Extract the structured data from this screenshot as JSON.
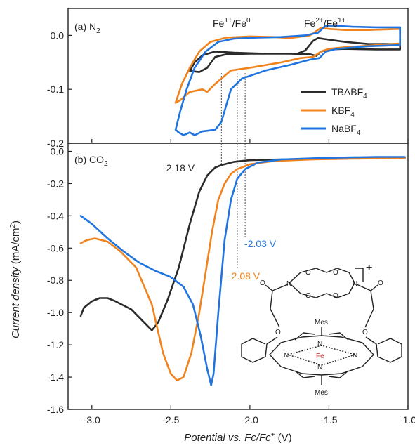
{
  "chart_data": [
    {
      "panel_label": "(a) N",
      "panel_sub": "2",
      "type": "line",
      "xlim": [
        -3.15,
        -1.0
      ],
      "ylim": [
        -0.2,
        0.05
      ],
      "yticks": [
        "0.0",
        "-0.1",
        "-0.2"
      ],
      "yticks_values": [
        0.0,
        -0.1,
        -0.2
      ],
      "annotations": [
        {
          "text": "Fe",
          "sup1": "1+",
          "mid": "/Fe",
          "sup2": "0"
        },
        {
          "text": "Fe",
          "sup1": "2+",
          "mid": "/Fe",
          "sup2": "1+"
        }
      ],
      "legend": {
        "placement": "right",
        "entries": [
          {
            "name": "TBABF",
            "sub": "4",
            "color": "#2b2b2b"
          },
          {
            "name": "KBF",
            "sub": "4",
            "color": "#f0831e"
          },
          {
            "name": "NaBF",
            "sub": "4",
            "color": "#1f74e0"
          }
        ]
      },
      "series": [
        {
          "color": "#2b2b2b",
          "points": [
            [
              -2.38,
              -0.066
            ],
            [
              -2.35,
              -0.05
            ],
            [
              -2.3,
              -0.037
            ],
            [
              -2.22,
              -0.03
            ],
            [
              -2.1,
              -0.032
            ],
            [
              -1.9,
              -0.034
            ],
            [
              -1.7,
              -0.034
            ],
            [
              -1.65,
              -0.028
            ],
            [
              -1.6,
              -0.01
            ],
            [
              -1.57,
              -0.005
            ],
            [
              -1.5,
              -0.008
            ],
            [
              -1.4,
              -0.012
            ],
            [
              -1.25,
              -0.016
            ],
            [
              -1.05,
              -0.016
            ],
            [
              -1.05,
              -0.026
            ],
            [
              -1.2,
              -0.026
            ],
            [
              -1.4,
              -0.025
            ],
            [
              -1.5,
              -0.026
            ],
            [
              -1.55,
              -0.03
            ],
            [
              -1.58,
              -0.038
            ],
            [
              -1.62,
              -0.035
            ],
            [
              -1.75,
              -0.034
            ],
            [
              -2.0,
              -0.034
            ],
            [
              -2.15,
              -0.035
            ],
            [
              -2.22,
              -0.04
            ],
            [
              -2.27,
              -0.06
            ],
            [
              -2.32,
              -0.068
            ],
            [
              -2.38,
              -0.066
            ]
          ]
        },
        {
          "color": "#f0831e",
          "points": [
            [
              -2.47,
              -0.125
            ],
            [
              -2.43,
              -0.09
            ],
            [
              -2.38,
              -0.06
            ],
            [
              -2.32,
              -0.03
            ],
            [
              -2.25,
              -0.012
            ],
            [
              -2.15,
              -0.004
            ],
            [
              -2.0,
              -0.002
            ],
            [
              -1.85,
              -0.003
            ],
            [
              -1.75,
              -0.005
            ],
            [
              -1.62,
              0.0
            ],
            [
              -1.55,
              0.014
            ],
            [
              -1.5,
              0.012
            ],
            [
              -1.4,
              0.01
            ],
            [
              -1.25,
              0.01
            ],
            [
              -1.05,
              0.012
            ],
            [
              -1.05,
              -0.015
            ],
            [
              -1.2,
              -0.018
            ],
            [
              -1.4,
              -0.022
            ],
            [
              -1.5,
              -0.025
            ],
            [
              -1.55,
              -0.03
            ],
            [
              -1.6,
              -0.04
            ],
            [
              -1.68,
              -0.042
            ],
            [
              -1.8,
              -0.05
            ],
            [
              -2.0,
              -0.06
            ],
            [
              -2.12,
              -0.065
            ],
            [
              -2.22,
              -0.09
            ],
            [
              -2.27,
              -0.105
            ],
            [
              -2.3,
              -0.1
            ],
            [
              -2.38,
              -0.105
            ],
            [
              -2.44,
              -0.12
            ],
            [
              -2.47,
              -0.125
            ]
          ]
        },
        {
          "color": "#1f74e0",
          "points": [
            [
              -2.47,
              -0.175
            ],
            [
              -2.44,
              -0.14
            ],
            [
              -2.4,
              -0.1
            ],
            [
              -2.35,
              -0.06
            ],
            [
              -2.28,
              -0.03
            ],
            [
              -2.2,
              -0.012
            ],
            [
              -2.1,
              -0.006
            ],
            [
              -1.95,
              -0.004
            ],
            [
              -1.8,
              -0.003
            ],
            [
              -1.65,
              0.0
            ],
            [
              -1.57,
              0.005
            ],
            [
              -1.52,
              0.018
            ],
            [
              -1.47,
              0.018
            ],
            [
              -1.35,
              0.016
            ],
            [
              -1.2,
              0.015
            ],
            [
              -1.05,
              0.015
            ],
            [
              -1.05,
              -0.018
            ],
            [
              -1.25,
              -0.02
            ],
            [
              -1.45,
              -0.025
            ],
            [
              -1.52,
              -0.03
            ],
            [
              -1.56,
              -0.042
            ],
            [
              -1.62,
              -0.045
            ],
            [
              -1.75,
              -0.055
            ],
            [
              -1.9,
              -0.065
            ],
            [
              -2.05,
              -0.08
            ],
            [
              -2.12,
              -0.1
            ],
            [
              -2.15,
              -0.13
            ],
            [
              -2.18,
              -0.16
            ],
            [
              -2.22,
              -0.175
            ],
            [
              -2.3,
              -0.178
            ],
            [
              -2.35,
              -0.185
            ],
            [
              -2.38,
              -0.18
            ],
            [
              -2.42,
              -0.185
            ],
            [
              -2.45,
              -0.18
            ],
            [
              -2.47,
              -0.175
            ]
          ]
        }
      ]
    },
    {
      "panel_label": "(b) CO",
      "panel_sub": "2",
      "type": "line",
      "xlim": [
        -3.15,
        -1.0
      ],
      "ylim": [
        -1.6,
        0.05
      ],
      "xticks": [
        "-3.0",
        "-2.5",
        "-2.0",
        "-1.5",
        "-1.0"
      ],
      "xticks_values": [
        -3.0,
        -2.5,
        -2.0,
        -1.5,
        -1.0
      ],
      "yticks": [
        "0.0",
        "-0.2",
        "-0.4",
        "-0.6",
        "-0.8",
        "-1.0",
        "-1.2",
        "-1.4",
        "-1.6"
      ],
      "yticks_values": [
        0.0,
        -0.2,
        -0.4,
        -0.6,
        -0.8,
        -1.0,
        -1.2,
        -1.4,
        -1.6
      ],
      "onset_labels": [
        {
          "text": "-2.18 V",
          "x": -2.18,
          "color": "#2b2b2b"
        },
        {
          "text": "-2.03 V",
          "x": -2.03,
          "color": "#1f74e0"
        },
        {
          "text": "-2.08 V",
          "x": -2.08,
          "color": "#f0831e"
        }
      ],
      "xlabel": "Potential vs. Fc/Fc",
      "xlabel_sup": "+",
      "xlabel_unit": " (V)",
      "ylabel": "Current density",
      "ylabel_unit": " (mA/cm",
      "ylabel_sup": "2",
      "series": [
        {
          "color": "#2b2b2b",
          "points": [
            [
              -3.07,
              -1.02
            ],
            [
              -3.05,
              -0.97
            ],
            [
              -3.0,
              -0.93
            ],
            [
              -2.95,
              -0.91
            ],
            [
              -2.9,
              -0.91
            ],
            [
              -2.85,
              -0.93
            ],
            [
              -2.75,
              -0.98
            ],
            [
              -2.68,
              -1.05
            ],
            [
              -2.62,
              -1.11
            ],
            [
              -2.58,
              -1.06
            ],
            [
              -2.52,
              -0.92
            ],
            [
              -2.45,
              -0.72
            ],
            [
              -2.38,
              -0.45
            ],
            [
              -2.32,
              -0.25
            ],
            [
              -2.27,
              -0.15
            ],
            [
              -2.22,
              -0.1
            ],
            [
              -2.18,
              -0.085
            ],
            [
              -2.1,
              -0.065
            ],
            [
              -2.0,
              -0.055
            ],
            [
              -1.8,
              -0.05
            ],
            [
              -1.5,
              -0.045
            ],
            [
              -1.2,
              -0.04
            ],
            [
              -1.02,
              -0.04
            ]
          ]
        },
        {
          "color": "#f0831e",
          "points": [
            [
              -3.07,
              -0.57
            ],
            [
              -3.03,
              -0.55
            ],
            [
              -2.98,
              -0.54
            ],
            [
              -2.9,
              -0.56
            ],
            [
              -2.82,
              -0.62
            ],
            [
              -2.72,
              -0.72
            ],
            [
              -2.62,
              -0.95
            ],
            [
              -2.55,
              -1.25
            ],
            [
              -2.5,
              -1.38
            ],
            [
              -2.46,
              -1.42
            ],
            [
              -2.42,
              -1.4
            ],
            [
              -2.37,
              -1.25
            ],
            [
              -2.32,
              -1.0
            ],
            [
              -2.28,
              -0.75
            ],
            [
              -2.24,
              -0.5
            ],
            [
              -2.2,
              -0.3
            ],
            [
              -2.16,
              -0.2
            ],
            [
              -2.12,
              -0.14
            ],
            [
              -2.08,
              -0.11
            ],
            [
              -2.0,
              -0.08
            ],
            [
              -1.85,
              -0.06
            ],
            [
              -1.6,
              -0.05
            ],
            [
              -1.3,
              -0.045
            ],
            [
              -1.02,
              -0.04
            ]
          ]
        },
        {
          "color": "#1f74e0",
          "points": [
            [
              -3.07,
              -0.4
            ],
            [
              -3.0,
              -0.45
            ],
            [
              -2.9,
              -0.54
            ],
            [
              -2.8,
              -0.62
            ],
            [
              -2.7,
              -0.69
            ],
            [
              -2.6,
              -0.74
            ],
            [
              -2.5,
              -0.78
            ],
            [
              -2.42,
              -0.84
            ],
            [
              -2.36,
              -0.95
            ],
            [
              -2.31,
              -1.15
            ],
            [
              -2.27,
              -1.35
            ],
            [
              -2.245,
              -1.45
            ],
            [
              -2.23,
              -1.38
            ],
            [
              -2.2,
              -1.0
            ],
            [
              -2.16,
              -0.55
            ],
            [
              -2.12,
              -0.3
            ],
            [
              -2.08,
              -0.17
            ],
            [
              -2.03,
              -0.11
            ],
            [
              -1.95,
              -0.07
            ],
            [
              -1.8,
              -0.05
            ],
            [
              -1.5,
              -0.04
            ],
            [
              -1.2,
              -0.035
            ],
            [
              -1.02,
              -0.035
            ]
          ]
        }
      ]
    }
  ],
  "structure": {
    "charge": "+",
    "atoms": {
      "O": "O",
      "N": "N",
      "Fe": "Fe",
      "Mes": "Mes"
    }
  }
}
